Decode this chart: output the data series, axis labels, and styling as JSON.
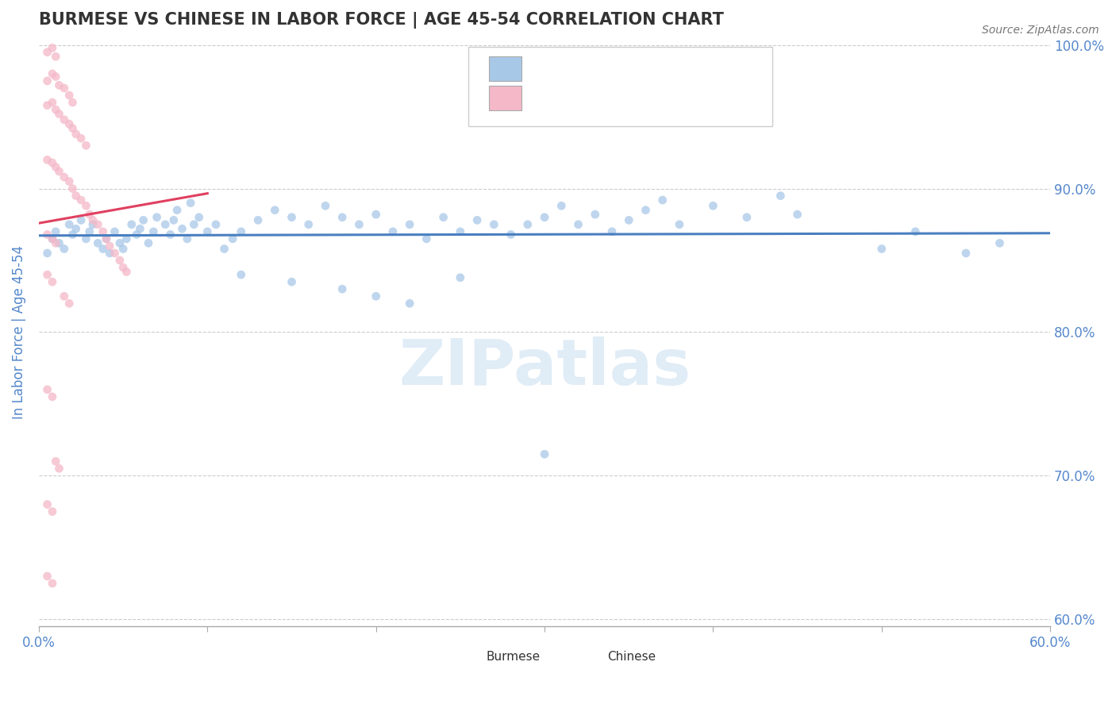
{
  "title": "BURMESE VS CHINESE IN LABOR FORCE | AGE 45-54 CORRELATION CHART",
  "source": "Source: ZipAtlas.com",
  "ylabel": "In Labor Force | Age 45-54",
  "xlim": [
    0.0,
    0.6
  ],
  "ylim": [
    0.595,
    1.005
  ],
  "xticks": [
    0.0,
    0.1,
    0.2,
    0.3,
    0.4,
    0.5,
    0.6
  ],
  "xtick_labels": [
    "0.0%",
    "",
    "",
    "",
    "",
    "",
    "60.0%"
  ],
  "yticks": [
    0.6,
    0.7,
    0.8,
    0.9,
    1.0
  ],
  "ytick_labels": [
    "60.0%",
    "70.0%",
    "80.0%",
    "90.0%",
    "100.0%"
  ],
  "blue_color": "#a8c8e8",
  "pink_color": "#f4b8c8",
  "blue_line_color": "#4a7fc0",
  "pink_line_color": "#e04060",
  "grid_color": "#cccccc",
  "axis_color": "#5588cc",
  "watermark_color": "#cce0f0",
  "blue_scatter": [
    [
      0.005,
      0.855
    ],
    [
      0.008,
      0.865
    ],
    [
      0.01,
      0.87
    ],
    [
      0.012,
      0.862
    ],
    [
      0.015,
      0.858
    ],
    [
      0.018,
      0.875
    ],
    [
      0.02,
      0.868
    ],
    [
      0.022,
      0.872
    ],
    [
      0.025,
      0.878
    ],
    [
      0.028,
      0.865
    ],
    [
      0.03,
      0.87
    ],
    [
      0.032,
      0.875
    ],
    [
      0.035,
      0.862
    ],
    [
      0.038,
      0.858
    ],
    [
      0.04,
      0.865
    ],
    [
      0.042,
      0.855
    ],
    [
      0.045,
      0.87
    ],
    [
      0.048,
      0.862
    ],
    [
      0.05,
      0.858
    ],
    [
      0.052,
      0.865
    ],
    [
      0.055,
      0.875
    ],
    [
      0.058,
      0.868
    ],
    [
      0.06,
      0.872
    ],
    [
      0.062,
      0.878
    ],
    [
      0.065,
      0.862
    ],
    [
      0.068,
      0.87
    ],
    [
      0.07,
      0.88
    ],
    [
      0.075,
      0.875
    ],
    [
      0.078,
      0.868
    ],
    [
      0.08,
      0.878
    ],
    [
      0.082,
      0.885
    ],
    [
      0.085,
      0.872
    ],
    [
      0.088,
      0.865
    ],
    [
      0.09,
      0.89
    ],
    [
      0.092,
      0.875
    ],
    [
      0.095,
      0.88
    ],
    [
      0.1,
      0.87
    ],
    [
      0.105,
      0.875
    ],
    [
      0.11,
      0.858
    ],
    [
      0.115,
      0.865
    ],
    [
      0.12,
      0.87
    ],
    [
      0.13,
      0.878
    ],
    [
      0.14,
      0.885
    ],
    [
      0.15,
      0.88
    ],
    [
      0.16,
      0.875
    ],
    [
      0.17,
      0.888
    ],
    [
      0.18,
      0.88
    ],
    [
      0.19,
      0.875
    ],
    [
      0.2,
      0.882
    ],
    [
      0.21,
      0.87
    ],
    [
      0.22,
      0.875
    ],
    [
      0.23,
      0.865
    ],
    [
      0.24,
      0.88
    ],
    [
      0.25,
      0.87
    ],
    [
      0.26,
      0.878
    ],
    [
      0.27,
      0.875
    ],
    [
      0.28,
      0.868
    ],
    [
      0.29,
      0.875
    ],
    [
      0.3,
      0.88
    ],
    [
      0.31,
      0.888
    ],
    [
      0.32,
      0.875
    ],
    [
      0.33,
      0.882
    ],
    [
      0.34,
      0.87
    ],
    [
      0.35,
      0.878
    ],
    [
      0.36,
      0.885
    ],
    [
      0.37,
      0.892
    ],
    [
      0.38,
      0.875
    ],
    [
      0.4,
      0.888
    ],
    [
      0.42,
      0.88
    ],
    [
      0.44,
      0.895
    ],
    [
      0.45,
      0.882
    ],
    [
      0.5,
      0.858
    ],
    [
      0.52,
      0.87
    ],
    [
      0.12,
      0.84
    ],
    [
      0.15,
      0.835
    ],
    [
      0.18,
      0.83
    ],
    [
      0.2,
      0.825
    ],
    [
      0.22,
      0.82
    ],
    [
      0.25,
      0.838
    ],
    [
      0.3,
      0.715
    ],
    [
      0.55,
      0.855
    ],
    [
      0.57,
      0.862
    ]
  ],
  "pink_scatter": [
    [
      0.005,
      0.995
    ],
    [
      0.008,
      0.998
    ],
    [
      0.01,
      0.992
    ],
    [
      0.005,
      0.975
    ],
    [
      0.008,
      0.98
    ],
    [
      0.01,
      0.978
    ],
    [
      0.012,
      0.972
    ],
    [
      0.015,
      0.97
    ],
    [
      0.018,
      0.965
    ],
    [
      0.02,
      0.96
    ],
    [
      0.005,
      0.958
    ],
    [
      0.008,
      0.96
    ],
    [
      0.01,
      0.955
    ],
    [
      0.012,
      0.952
    ],
    [
      0.015,
      0.948
    ],
    [
      0.018,
      0.945
    ],
    [
      0.02,
      0.942
    ],
    [
      0.022,
      0.938
    ],
    [
      0.025,
      0.935
    ],
    [
      0.028,
      0.93
    ],
    [
      0.005,
      0.92
    ],
    [
      0.008,
      0.918
    ],
    [
      0.01,
      0.915
    ],
    [
      0.012,
      0.912
    ],
    [
      0.015,
      0.908
    ],
    [
      0.018,
      0.905
    ],
    [
      0.02,
      0.9
    ],
    [
      0.022,
      0.895
    ],
    [
      0.025,
      0.892
    ],
    [
      0.028,
      0.888
    ],
    [
      0.03,
      0.882
    ],
    [
      0.032,
      0.878
    ],
    [
      0.035,
      0.875
    ],
    [
      0.038,
      0.87
    ],
    [
      0.04,
      0.865
    ],
    [
      0.042,
      0.86
    ],
    [
      0.045,
      0.855
    ],
    [
      0.048,
      0.85
    ],
    [
      0.05,
      0.845
    ],
    [
      0.052,
      0.842
    ],
    [
      0.005,
      0.868
    ],
    [
      0.008,
      0.865
    ],
    [
      0.01,
      0.862
    ],
    [
      0.005,
      0.84
    ],
    [
      0.008,
      0.835
    ],
    [
      0.015,
      0.825
    ],
    [
      0.018,
      0.82
    ],
    [
      0.005,
      0.76
    ],
    [
      0.008,
      0.755
    ],
    [
      0.01,
      0.71
    ],
    [
      0.012,
      0.705
    ],
    [
      0.005,
      0.68
    ],
    [
      0.008,
      0.675
    ],
    [
      0.005,
      0.63
    ],
    [
      0.008,
      0.625
    ]
  ]
}
